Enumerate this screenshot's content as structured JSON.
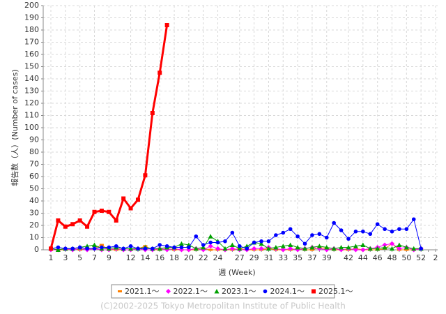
{
  "chart_data": {
    "type": "line",
    "ylabel": "報告数（人）(Number of cases)",
    "xlabel": "週 (Week)",
    "footer": "(C)2002-2025 Tokyo Metropolitan Institute of Public Health",
    "categories": [
      "1",
      null,
      "3",
      null,
      "5",
      null,
      "7",
      null,
      "9",
      null,
      null,
      "12",
      null,
      "14",
      null,
      "16",
      null,
      "18",
      null,
      "20",
      null,
      "22",
      null,
      "24",
      null,
      null,
      "27",
      null,
      "29",
      null,
      "31",
      null,
      "33",
      null,
      "35",
      null,
      "37",
      null,
      "39",
      null,
      null,
      "42",
      null,
      "44",
      null,
      "46",
      null,
      "48",
      null,
      "50",
      null,
      "52",
      null,
      "2"
    ],
    "ylim": [
      0,
      200
    ],
    "yticks": [
      0,
      10,
      20,
      30,
      40,
      50,
      60,
      70,
      80,
      90,
      100,
      110,
      120,
      130,
      140,
      150,
      160,
      170,
      180,
      190,
      200
    ],
    "grid": true,
    "legend": "bottom",
    "series": [
      {
        "name": "2021.1～",
        "color": "#ff8000",
        "marker": "dash",
        "line_width": 1,
        "values": [
          0,
          0,
          0,
          1,
          0,
          1,
          1,
          4,
          0,
          0,
          0,
          0,
          1,
          3,
          0,
          0,
          1,
          0,
          0,
          0,
          0,
          1,
          0,
          0,
          0,
          0,
          1,
          0,
          0,
          0,
          1,
          0,
          0,
          0,
          1,
          0,
          0,
          2,
          1,
          0,
          0,
          0,
          1,
          0,
          0,
          0,
          1,
          5,
          0,
          0,
          0,
          1,
          null,
          null
        ]
      },
      {
        "name": "2022.1～",
        "color": "#ff00ff",
        "marker": "diamond",
        "line_width": 1,
        "values": [
          0,
          0,
          1,
          0,
          1,
          0,
          1,
          0,
          0,
          1,
          0,
          0,
          1,
          0,
          0,
          1,
          0,
          1,
          0,
          0,
          1,
          0,
          3,
          1,
          0,
          1,
          0,
          0,
          1,
          1,
          2,
          1,
          0,
          1,
          0,
          1,
          2,
          1,
          0,
          1,
          0,
          1,
          0,
          0,
          1,
          2,
          4,
          5,
          1,
          2,
          0,
          1,
          null,
          null
        ]
      },
      {
        "name": "2023.1～",
        "color": "#00a000",
        "marker": "triangle",
        "line_width": 1,
        "values": [
          1,
          0,
          1,
          1,
          2,
          3,
          4,
          1,
          1,
          2,
          1,
          1,
          1,
          2,
          1,
          1,
          2,
          2,
          5,
          4,
          1,
          2,
          11,
          7,
          1,
          4,
          1,
          3,
          6,
          5,
          1,
          2,
          3,
          4,
          2,
          1,
          2,
          3,
          2,
          1,
          2,
          2,
          3,
          4,
          1,
          1,
          2,
          1,
          4,
          2,
          1,
          1,
          null,
          null
        ]
      },
      {
        "name": "2024.1～",
        "color": "#0000ff",
        "marker": "circle",
        "line_width": 1,
        "values": [
          1,
          2,
          1,
          1,
          2,
          1,
          1,
          2,
          2,
          3,
          1,
          3,
          1,
          1,
          1,
          4,
          3,
          2,
          2,
          2,
          11,
          4,
          6,
          6,
          7,
          14,
          3,
          1,
          6,
          7,
          7,
          12,
          14,
          17,
          11,
          5,
          12,
          13,
          10,
          22,
          16,
          9,
          15,
          15,
          13,
          21,
          17,
          15,
          17,
          17,
          25,
          1,
          null,
          null
        ]
      },
      {
        "name": "2025.1～",
        "color": "#ff0000",
        "marker": "square",
        "line_width": 3,
        "values": [
          1,
          24,
          19,
          21,
          24,
          19,
          31,
          32,
          31,
          24,
          42,
          34,
          41,
          61,
          112,
          145,
          184,
          null,
          null,
          null,
          null,
          null,
          null,
          null,
          null,
          null,
          null,
          null,
          null,
          null,
          null,
          null,
          null,
          null,
          null,
          null,
          null,
          null,
          null,
          null,
          null,
          null,
          null,
          null,
          null,
          null,
          null,
          null,
          null,
          null,
          null,
          null,
          null,
          null
        ]
      }
    ]
  }
}
